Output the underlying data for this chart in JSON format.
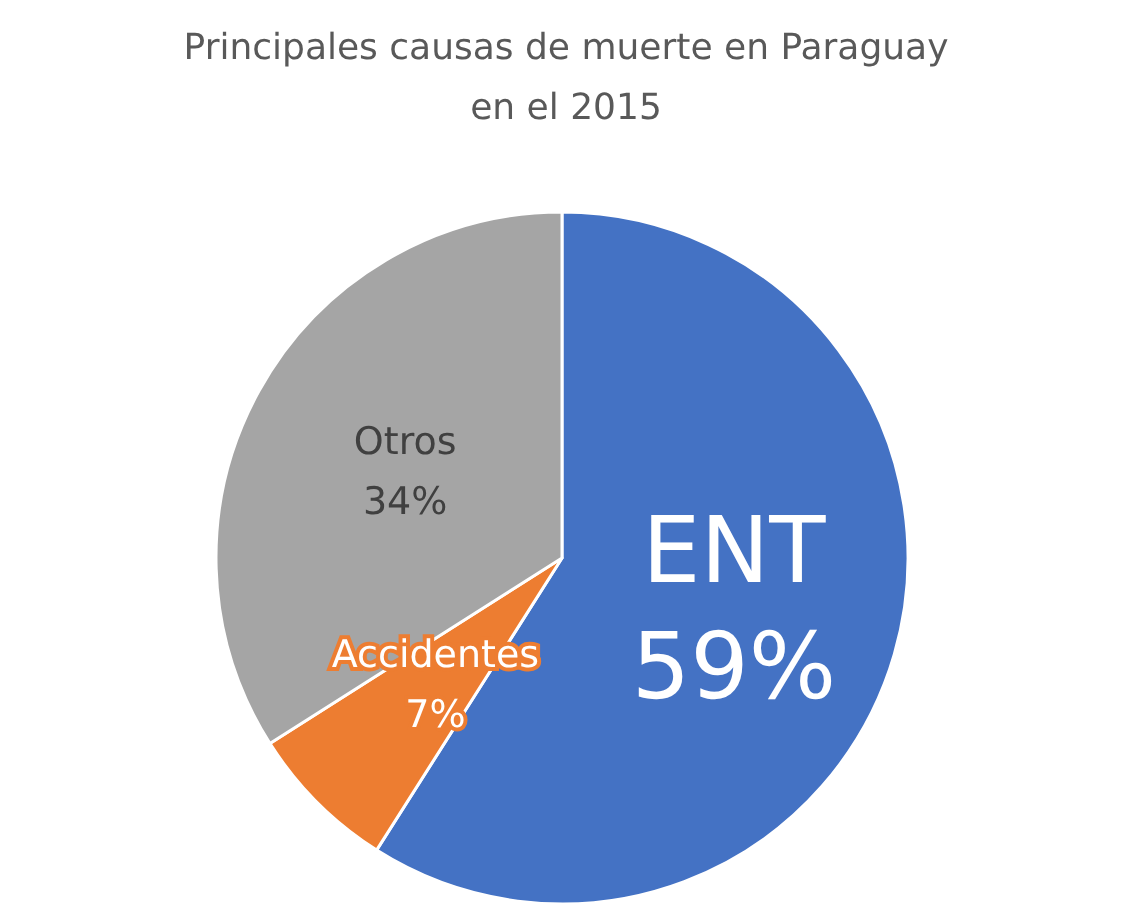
{
  "chart_data": {
    "type": "pie",
    "title": "Principales causas de muerte en Paraguay\nen el 2015",
    "categories": [
      "ENT",
      "Accidentes",
      "Otros"
    ],
    "values": [
      59,
      7,
      34
    ],
    "colors": [
      "#4472c4",
      "#ed7d31",
      "#a5a5a5"
    ],
    "value_labels": [
      "59%",
      "7%",
      "34%"
    ],
    "legend": false
  }
}
